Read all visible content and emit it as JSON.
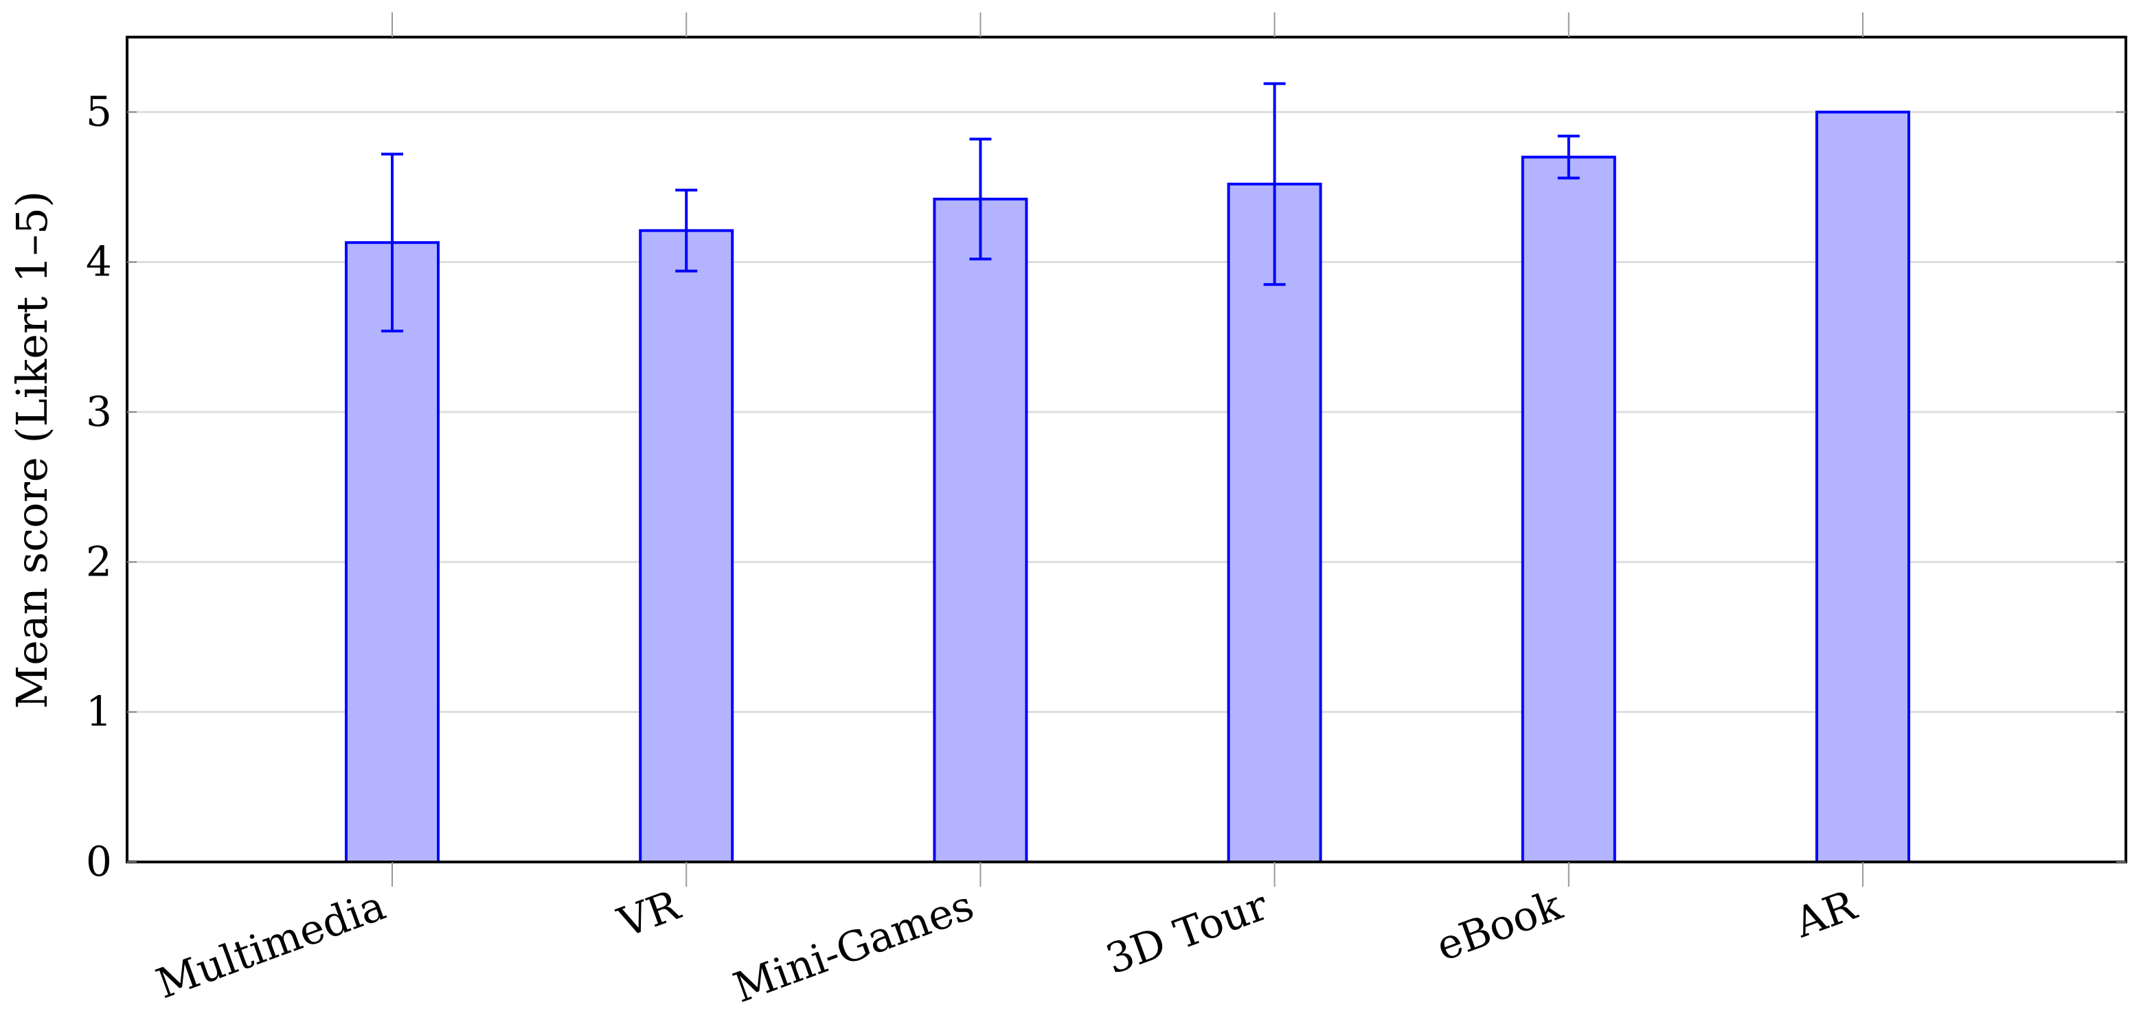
{
  "chart_data": {
    "type": "bar",
    "categories": [
      "Multimedia",
      "VR",
      "Mini-Games",
      "3D Tour",
      "eBook",
      "AR"
    ],
    "values": [
      4.13,
      4.21,
      4.42,
      4.52,
      4.7,
      5.0
    ],
    "errors": [
      0.59,
      0.27,
      0.4,
      0.67,
      0.14,
      0
    ],
    "title": "",
    "xlabel": "",
    "ylabel": "Mean score (Likert 1–5)",
    "ylim": [
      0,
      5.5
    ],
    "yticks": [
      0,
      1,
      2,
      3,
      4,
      5
    ],
    "grid": "horizontal",
    "legend": "none",
    "colors": {
      "bar_fill": "#b3b3ff",
      "bar_stroke": "#0000ff",
      "error_bar": "#0000ff",
      "grid": "#dddddd",
      "axis": "#000000"
    }
  }
}
